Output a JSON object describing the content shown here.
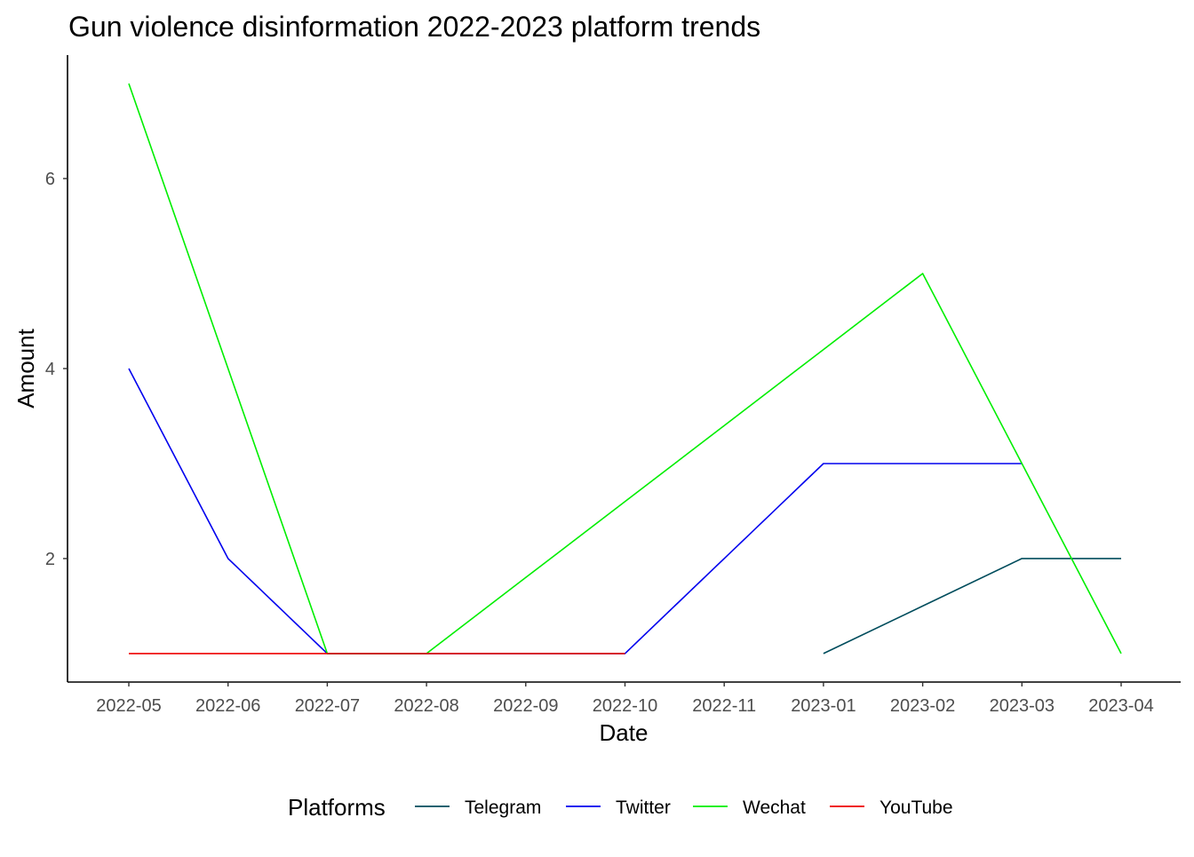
{
  "chart_data": {
    "type": "line",
    "title": "Gun violence disinformation 2022-2023 platform trends",
    "xlabel": "Date",
    "ylabel": "Amount",
    "categories": [
      "2022-05",
      "2022-06",
      "2022-07",
      "2022-08",
      "2022-09",
      "2022-10",
      "2022-11",
      "2023-01",
      "2023-02",
      "2023-03",
      "2023-04"
    ],
    "yticks": [
      2,
      4,
      6
    ],
    "ylim": [
      0.7,
      7.3
    ],
    "grid": false,
    "legend": {
      "title": "Platforms",
      "position": "bottom"
    },
    "series": [
      {
        "name": "Telegram",
        "color": "#004c5c",
        "values": [
          null,
          null,
          null,
          null,
          null,
          null,
          null,
          1,
          1.5,
          2,
          2
        ]
      },
      {
        "name": "Twitter",
        "color": "#0000ee",
        "values": [
          4,
          2,
          1,
          1,
          1,
          1,
          2,
          3,
          3,
          3,
          null
        ]
      },
      {
        "name": "Wechat",
        "color": "#00ee00",
        "values": [
          7,
          4,
          1,
          1,
          1.8,
          2.6,
          3.4,
          4.2,
          5,
          3,
          1
        ]
      },
      {
        "name": "YouTube",
        "color": "#ee0000",
        "values": [
          1,
          1,
          1,
          1,
          1,
          1,
          null,
          null,
          null,
          null,
          null
        ]
      }
    ]
  }
}
